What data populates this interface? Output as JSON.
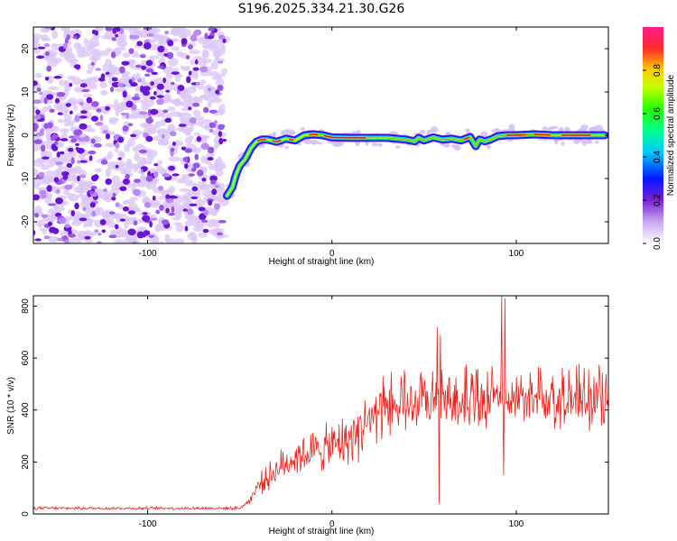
{
  "title": "S196.2025.334.21.30.G26",
  "chart_data": [
    {
      "type": "heatmap",
      "name": "spectrogram",
      "xlabel": "Height of straight line (km)",
      "ylabel": "Frequency (Hz)",
      "xlim": [
        -162,
        150
      ],
      "ylim": [
        -25,
        25
      ],
      "xticks": [
        -100,
        0,
        100
      ],
      "yticks": [
        -20,
        -10,
        0,
        10,
        20
      ],
      "noise_region_x": [
        -162,
        -58
      ],
      "ridge_x": [
        -57,
        -54,
        -52,
        -50,
        -47,
        -44,
        -41,
        -38,
        -35,
        -30,
        -25,
        -20,
        -15,
        -10,
        -5,
        0,
        10,
        20,
        30,
        40,
        45,
        47,
        50,
        55,
        60,
        65,
        70,
        75,
        78,
        80,
        83,
        86,
        90,
        95,
        100,
        110,
        120,
        130,
        140,
        148
      ],
      "ridge_hz": [
        -14,
        -12,
        -9,
        -7,
        -5.5,
        -3,
        -1.5,
        -1,
        -1,
        -1.5,
        -0.8,
        -1.2,
        0,
        0.2,
        0,
        -0.5,
        -0.6,
        -0.6,
        -0.6,
        -1,
        -1.4,
        -0.6,
        -1.2,
        -0.5,
        -1,
        -0.8,
        -1.2,
        -0.4,
        -2.5,
        -1.0,
        -1.4,
        -1.0,
        -0.2,
        0,
        0,
        0.2,
        0,
        0,
        0,
        0
      ],
      "colorbar": {
        "label": "Normalized spectral amplitude",
        "range": [
          0,
          1
        ],
        "ticks": [
          0.0,
          0.2,
          0.4,
          0.6,
          0.8
        ]
      }
    },
    {
      "type": "line",
      "name": "snr",
      "xlabel": "Height of straight line (km)",
      "ylabel": "SNR (10 * v/v)",
      "xlim": [
        -162,
        150
      ],
      "ylim": [
        0,
        840
      ],
      "xticks": [
        -100,
        0,
        100
      ],
      "yticks": [
        0,
        200,
        400,
        600,
        800
      ],
      "color": "#e8251f",
      "trend_x": [
        -162,
        -120,
        -80,
        -50,
        -45,
        -40,
        -30,
        -20,
        -10,
        0,
        10,
        20,
        30,
        40,
        50,
        60,
        70,
        80,
        100,
        120,
        150
      ],
      "trend_y": [
        22,
        22,
        22,
        22,
        50,
        110,
        170,
        220,
        240,
        260,
        290,
        360,
        400,
        415,
        420,
        425,
        430,
        430,
        430,
        430,
        430
      ],
      "spikes_x": [
        57,
        58,
        59,
        92,
        93,
        94
      ],
      "spikes_y": [
        720,
        40,
        690,
        840,
        150,
        830
      ]
    }
  ]
}
